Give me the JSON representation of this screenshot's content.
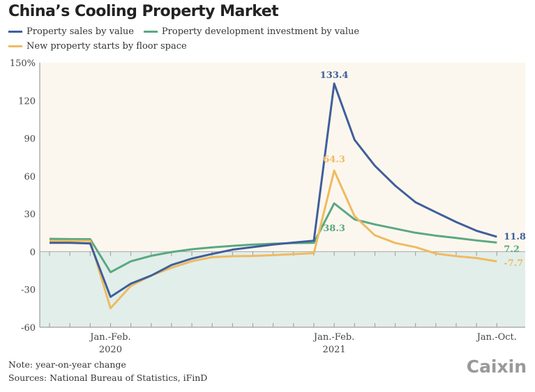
{
  "chart_data": {
    "type": "line",
    "title": "China’s Cooling Property Market",
    "ylabel": "",
    "xlabel": "",
    "ylim": [
      -60,
      150
    ],
    "yticks": [
      "150%",
      "120",
      "90",
      "60",
      "30",
      "0",
      "-30",
      "-60"
    ],
    "ytick_values": [
      150,
      120,
      90,
      60,
      30,
      0,
      -30,
      -60
    ],
    "xtick_labels": [
      {
        "index": 3,
        "line1": "Jan.-Feb.",
        "line2": "2020"
      },
      {
        "index": 14,
        "line1": "Jan.-Feb.",
        "line2": "2021"
      },
      {
        "index": 22,
        "line1": "Jan.-Oct.",
        "line2": ""
      }
    ],
    "grid": false,
    "legend_position": "top-left",
    "colors": {
      "positive_bg": "#fcf7ee",
      "negative_bg": "#e2eeea"
    },
    "series": [
      {
        "name": "Property sales by value",
        "color": "#3f5f9a",
        "values": [
          7,
          7,
          6.5,
          -35.9,
          -25.4,
          -19,
          -10.6,
          -5.5,
          -1.8,
          1.6,
          3.6,
          5.6,
          7.2,
          8.7,
          133.4,
          88.8,
          68.2,
          52.4,
          39.2,
          31.3,
          23.5,
          16.6,
          11.8
        ],
        "labels": [
          {
            "index": 14,
            "text": "133.4"
          },
          {
            "index": 22,
            "text": "11.8"
          }
        ]
      },
      {
        "name": "Property development investment by value",
        "color": "#5aa883",
        "values": [
          10.2,
          10,
          9.9,
          -16.3,
          -7.7,
          -3.3,
          -0.3,
          1.9,
          3.4,
          4.6,
          5.6,
          6.3,
          6.8,
          7.0,
          38.3,
          25.6,
          21.6,
          18.3,
          15.0,
          12.7,
          10.9,
          8.9,
          7.2
        ],
        "labels": [
          {
            "index": 14,
            "text": "38.3"
          },
          {
            "index": 22,
            "text": "7.2"
          }
        ]
      },
      {
        "name": "New property starts by floor space",
        "color": "#eebb60",
        "values": [
          8.5,
          8.5,
          8.5,
          -44.9,
          -27.2,
          -18.9,
          -12.8,
          -7.6,
          -4.4,
          -3.6,
          -3.4,
          -2.8,
          -2.0,
          -1.2,
          64.3,
          28.2,
          13.0,
          6.9,
          3.6,
          -1.5,
          -3.6,
          -5.1,
          -7.7
        ],
        "labels": [
          {
            "index": 14,
            "text": "64.3"
          },
          {
            "index": 22,
            "text": "-7.7"
          }
        ]
      }
    ]
  },
  "notes": {
    "note": "Note: year-on-year change",
    "sources": "Sources: National Bureau of Statistics, iFinD"
  },
  "logo": "Caixin"
}
